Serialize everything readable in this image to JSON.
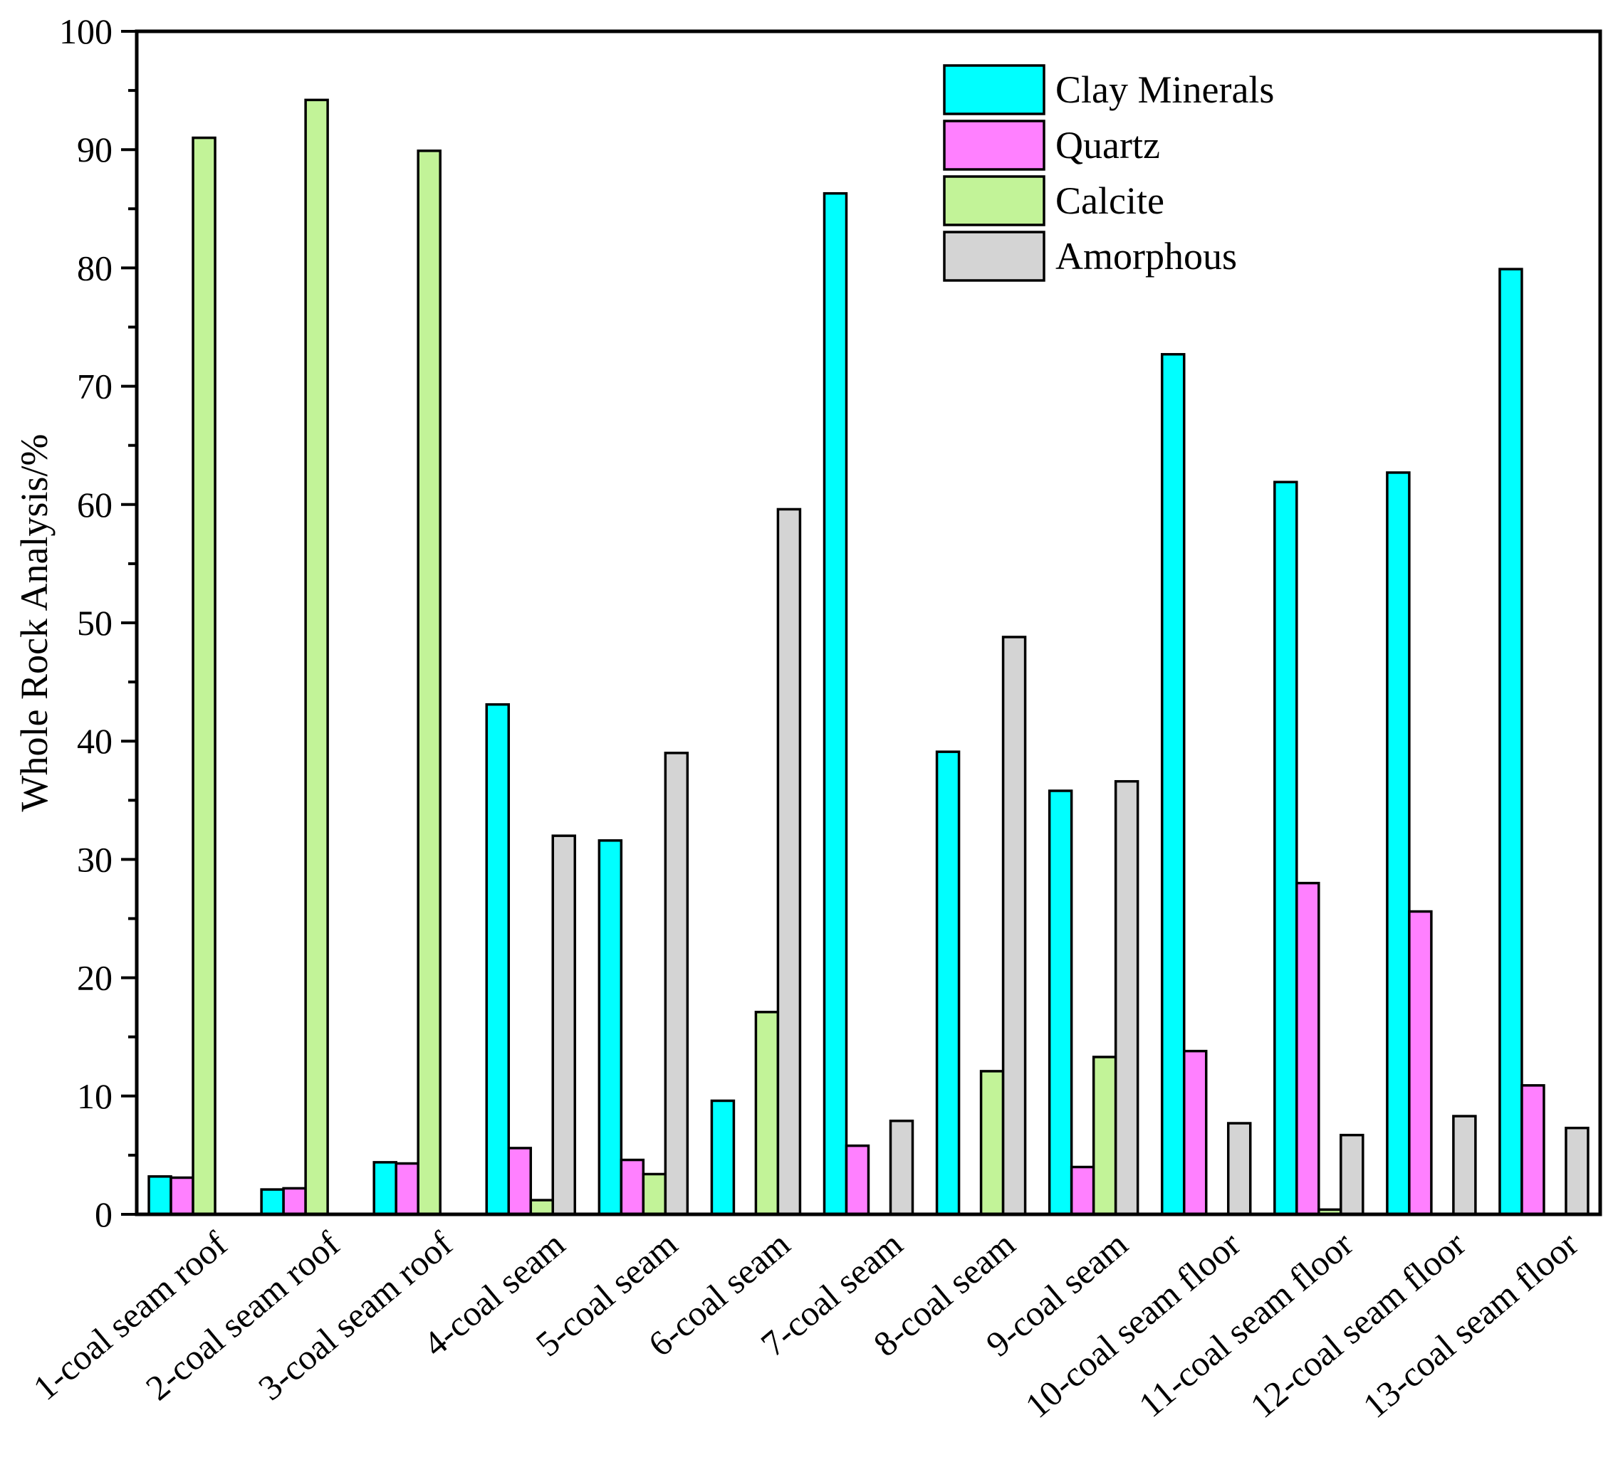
{
  "chart_data": {
    "type": "bar",
    "title": "",
    "xlabel": "",
    "ylabel": "Whole Rock Analysis/%",
    "ylim": [
      0,
      100
    ],
    "yticks": [
      "0",
      "10",
      "20",
      "30",
      "40",
      "50",
      "60",
      "70",
      "80",
      "90",
      "100"
    ],
    "grid": false,
    "legend_position": "top-right",
    "categories": [
      "1-coal seam roof",
      "2-coal seam roof",
      "3-coal seam roof",
      "4-coal seam",
      "5-coal seam",
      "6-coal seam",
      "7-coal seam",
      "8-coal seam",
      "9-coal seam",
      "10-coal seam floor",
      "11-coal seam floor",
      "12-coal seam floor",
      "13-coal seam floor"
    ],
    "series": [
      {
        "name": "Clay Minerals",
        "color": "#00FFFF",
        "values": [
          3.2,
          2.1,
          4.4,
          43.1,
          31.6,
          9.6,
          86.3,
          39.1,
          35.8,
          72.7,
          61.9,
          62.7,
          79.9
        ]
      },
      {
        "name": "Quartz",
        "color": "#FF80FF",
        "values": [
          3.1,
          2.2,
          4.3,
          5.6,
          4.6,
          0,
          5.8,
          0,
          4.0,
          13.8,
          28.0,
          25.6,
          10.9
        ]
      },
      {
        "name": "Calcite",
        "color": "#C2F398",
        "values": [
          91.0,
          94.2,
          89.9,
          1.2,
          3.4,
          17.1,
          0,
          12.1,
          13.3,
          0,
          0.4,
          0,
          0
        ]
      },
      {
        "name": "Amorphous",
        "color": "#D4D4D4",
        "values": [
          0,
          0,
          0,
          32.0,
          39.0,
          59.6,
          7.9,
          48.8,
          36.6,
          7.7,
          6.7,
          8.3,
          7.3
        ]
      }
    ]
  }
}
